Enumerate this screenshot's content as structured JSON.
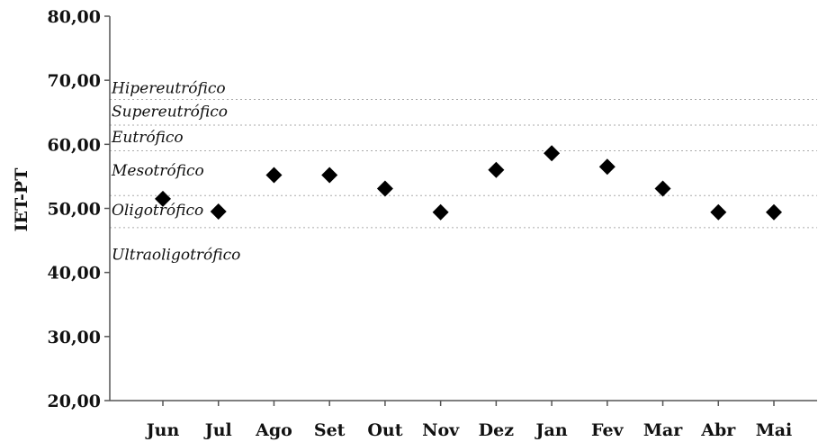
{
  "chart_data": {
    "type": "scatter",
    "ylabel": "IET-PT",
    "xlabel": "",
    "title": "",
    "ylim": [
      20,
      80
    ],
    "yticks": [
      "20,00",
      "30,00",
      "40,00",
      "50,00",
      "60,00",
      "70,00",
      "80,00"
    ],
    "ytick_values": [
      20,
      30,
      40,
      50,
      60,
      70,
      80
    ],
    "categories": [
      "Jun",
      "Jul",
      "Ago",
      "Set",
      "Out",
      "Nov",
      "Dez",
      "Jan",
      "Fev",
      "Mar",
      "Abr",
      "Mai"
    ],
    "values": [
      51.5,
      49.5,
      55.2,
      55.2,
      53.1,
      49.4,
      56.0,
      58.6,
      56.5,
      53.1,
      49.4,
      49.4
    ],
    "marker": "diamond",
    "marker_color": "#000000",
    "grid": false,
    "legend": "none",
    "thresholds": [
      47,
      52,
      59,
      63,
      67
    ],
    "bands": [
      {
        "label": "Hipereutrófico",
        "y": 68.8
      },
      {
        "label": "Supereutrófico",
        "y": 65.2
      },
      {
        "label": "Eutrófico",
        "y": 61.2
      },
      {
        "label": "Mesotrófico",
        "y": 56.0
      },
      {
        "label": "Oligotrófico",
        "y": 49.8
      },
      {
        "label": "Ultraoligotrófico",
        "y": 42.8
      }
    ]
  }
}
